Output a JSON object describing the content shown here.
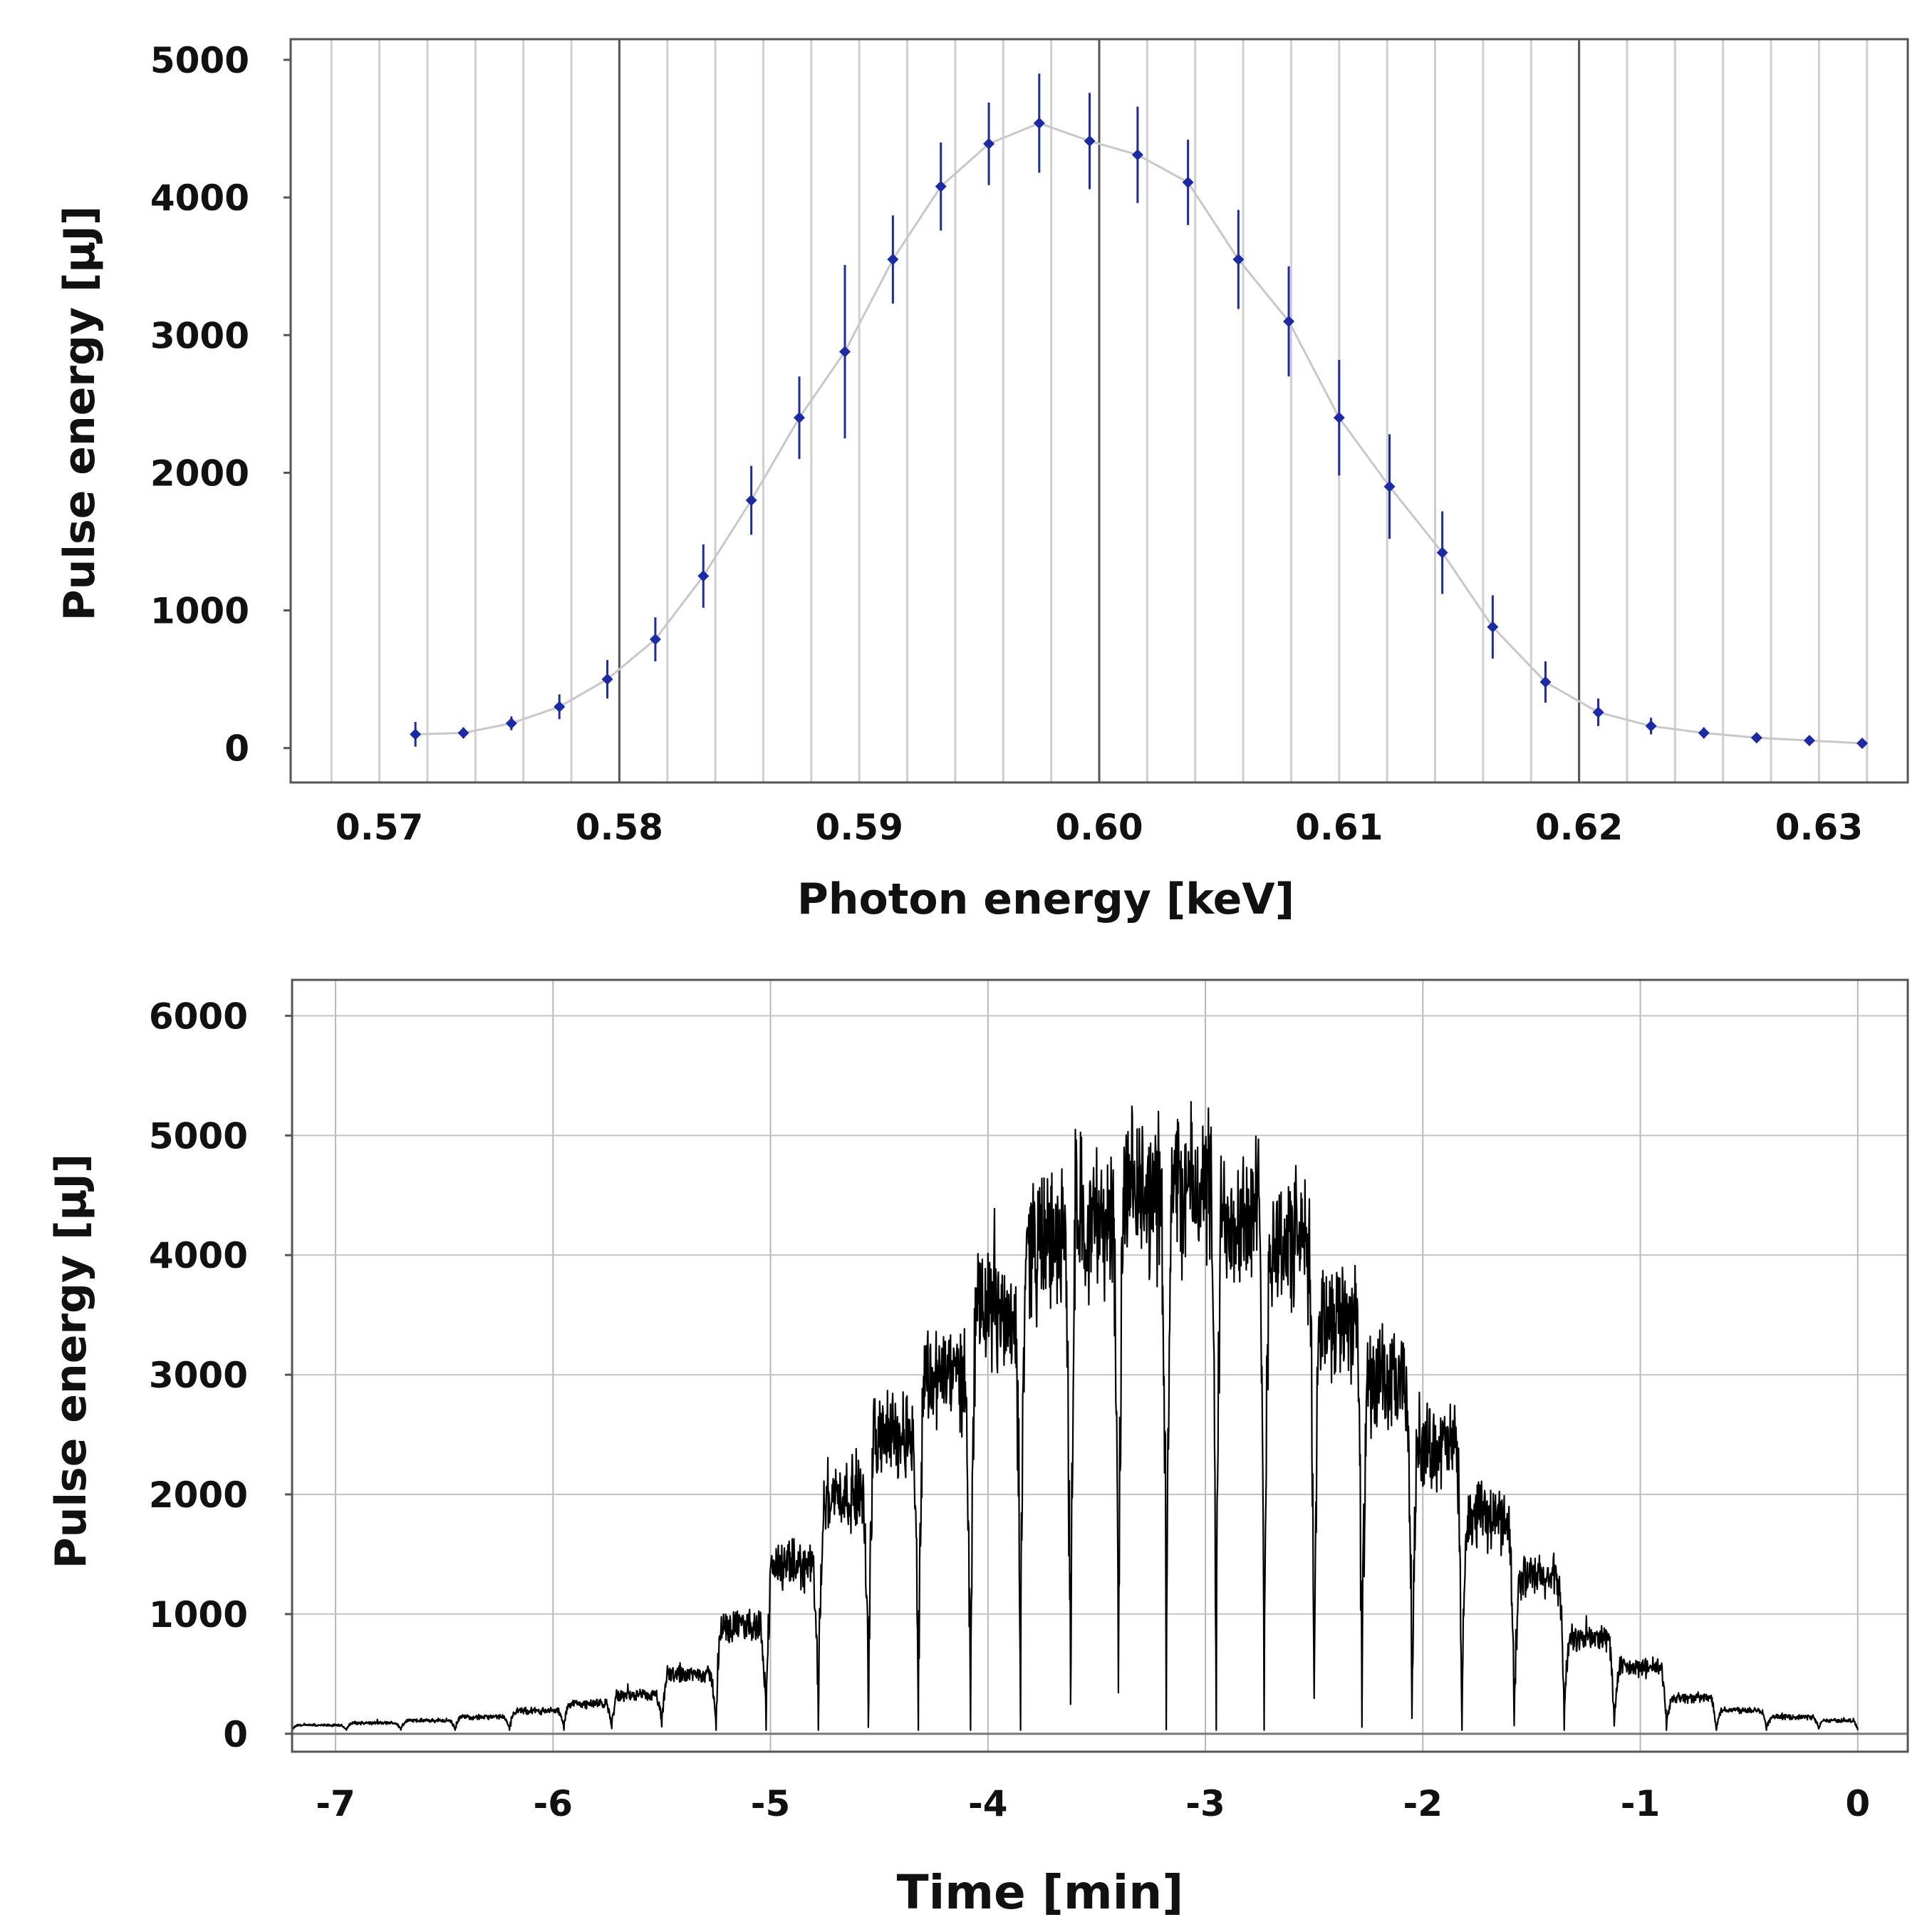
{
  "chart_data": [
    {
      "type": "scatter",
      "title": "",
      "xlabel": "Photon energy [keV]",
      "ylabel": "Pulse energy [μJ]",
      "xlim": [
        0.5663,
        0.6337
      ],
      "ylim": [
        -250,
        5150
      ],
      "x_ticks": [
        0.57,
        0.58,
        0.59,
        0.6,
        0.61,
        0.62,
        0.63
      ],
      "x_tick_labels": [
        "0.57",
        "0.58",
        "0.59",
        "0.60",
        "0.61",
        "0.62",
        "0.63"
      ],
      "y_ticks": [
        0,
        1000,
        2000,
        3000,
        4000,
        5000
      ],
      "y_tick_labels": [
        "0",
        "1000",
        "2000",
        "3000",
        "4000",
        "5000"
      ],
      "minor_grid_step": 0.002,
      "grid": true,
      "marker_color": "#1a2aa8",
      "line_color": "#c8c8c8",
      "series": [
        {
          "name": "Pulse energy",
          "x": [
            0.5715,
            0.5735,
            0.5755,
            0.5775,
            0.5795,
            0.5815,
            0.5835,
            0.5855,
            0.5875,
            0.5894,
            0.5914,
            0.5934,
            0.5954,
            0.5975,
            0.5996,
            0.6016,
            0.6037,
            0.6058,
            0.6079,
            0.61,
            0.6121,
            0.6143,
            0.6164,
            0.6186,
            0.6208,
            0.623,
            0.6252,
            0.6274,
            0.6296,
            0.6318
          ],
          "y": [
            100,
            110,
            180,
            300,
            500,
            790,
            1250,
            1800,
            2400,
            2880,
            3550,
            4080,
            4390,
            4540,
            4410,
            4310,
            4110,
            3550,
            3100,
            2400,
            1900,
            1420,
            880,
            480,
            260,
            160,
            110,
            75,
            55,
            35
          ],
          "error": [
            90,
            40,
            50,
            90,
            140,
            160,
            230,
            250,
            300,
            630,
            320,
            320,
            300,
            360,
            350,
            350,
            310,
            360,
            400,
            420,
            380,
            300,
            230,
            150,
            100,
            60,
            40,
            30,
            25,
            20
          ]
        }
      ]
    },
    {
      "type": "line",
      "title": "",
      "xlabel": "Time [min]",
      "ylabel": "Pulse energy [μJ]",
      "xlim": [
        -7.2,
        0.23
      ],
      "ylim": [
        -150,
        6300
      ],
      "x_ticks": [
        -7,
        -6,
        -5,
        -4,
        -3,
        -2,
        -1,
        0
      ],
      "x_tick_labels": [
        "-7",
        "-6",
        "-5",
        "-4",
        "-3",
        "-2",
        "-1",
        "0"
      ],
      "y_ticks": [
        0,
        1000,
        2000,
        3000,
        4000,
        5000,
        6000
      ],
      "y_tick_labels": [
        "0",
        "1000",
        "2000",
        "3000",
        "4000",
        "5000",
        "6000"
      ],
      "grid": true,
      "baseline": 0,
      "line_color": "#000000",
      "series": [
        {
          "name": "Pulse energy vs time",
          "step_start": [
            -7.2,
            -6.95,
            -6.7,
            -6.45,
            -6.2,
            -5.95,
            -5.73,
            -5.5,
            -5.25,
            -5.02,
            -4.78,
            -4.55,
            -4.32,
            -4.08,
            -3.85,
            -3.62,
            -3.4,
            -3.18,
            -2.95,
            -2.73,
            -2.5,
            -2.28,
            -2.05,
            -1.82,
            -1.58,
            -1.35,
            -1.12,
            -0.88,
            -0.65,
            -0.42,
            -0.18
          ],
          "step_end": [
            -6.95,
            -6.7,
            -6.45,
            -6.2,
            -5.95,
            -5.73,
            -5.5,
            -5.25,
            -5.02,
            -4.78,
            -4.55,
            -4.32,
            -4.08,
            -3.85,
            -3.62,
            -3.4,
            -3.18,
            -2.95,
            -2.73,
            -2.5,
            -2.28,
            -2.05,
            -1.82,
            -1.58,
            -1.35,
            -1.12,
            -0.88,
            -0.65,
            -0.42,
            -0.18,
            0.0
          ],
          "step_level": [
            70,
            90,
            110,
            140,
            190,
            250,
            320,
            500,
            900,
            1400,
            2000,
            2500,
            3000,
            3500,
            4100,
            4300,
            4500,
            4550,
            4350,
            4100,
            3500,
            2900,
            2400,
            1800,
            1300,
            800,
            550,
            300,
            200,
            140,
            110
          ],
          "noise_amplitude_fraction": 0.12,
          "dip_min": 30
        }
      ]
    }
  ]
}
